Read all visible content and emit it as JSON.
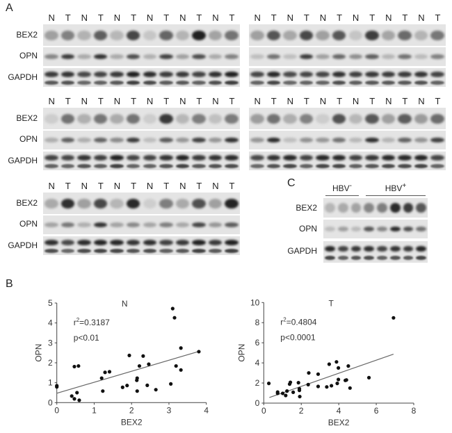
{
  "panels": {
    "a": "A",
    "b": "B",
    "c": "C"
  },
  "lane_labels": [
    "N",
    "T",
    "N",
    "T",
    "N",
    "T",
    "N",
    "T",
    "N",
    "T",
    "N",
    "T"
  ],
  "rows": {
    "bex2": "BEX2",
    "opn": "OPN",
    "gapdh": "GAPDH"
  },
  "panel_c": {
    "hbv_neg": "HBV-",
    "hbv_pos": "HBV+",
    "hbv_neg_base": "HBV",
    "hbv_neg_sup": "-",
    "hbv_pos_base": "HBV",
    "hbv_pos_sup": "+"
  },
  "chart_data": [
    {
      "type": "scatter",
      "title": "N",
      "xlabel": "BEX2",
      "ylabel": "OPN",
      "xlim": [
        0,
        4
      ],
      "ylim": [
        0,
        5
      ],
      "xticks": [
        0,
        1,
        2,
        3,
        4
      ],
      "yticks": [
        0,
        1,
        2,
        3,
        4,
        5
      ],
      "annotation": {
        "r2_label": "r",
        "r2_sup": "2",
        "r2_value": "=0.3187",
        "p": "p<0.01"
      },
      "points": [
        [
          0,
          0.85
        ],
        [
          0,
          0.79
        ],
        [
          0.4,
          0.33
        ],
        [
          0.47,
          0.19
        ],
        [
          0.47,
          1.81
        ],
        [
          0.58,
          1.84
        ],
        [
          0.54,
          0.5
        ],
        [
          0.6,
          0.12
        ],
        [
          1.2,
          1.23
        ],
        [
          1.23,
          0.58
        ],
        [
          1.29,
          1.52
        ],
        [
          1.41,
          1.55
        ],
        [
          1.76,
          0.77
        ],
        [
          1.88,
          0.86
        ],
        [
          1.94,
          2.37
        ],
        [
          2.14,
          1.12
        ],
        [
          2.15,
          1.23
        ],
        [
          2.15,
          0.58
        ],
        [
          2.21,
          1.84
        ],
        [
          2.31,
          2.34
        ],
        [
          2.42,
          0.87
        ],
        [
          2.46,
          1.93
        ],
        [
          2.65,
          0.65
        ],
        [
          3.05,
          0.94
        ],
        [
          3.1,
          4.72
        ],
        [
          3.15,
          4.26
        ],
        [
          3.19,
          1.84
        ],
        [
          3.32,
          2.74
        ],
        [
          3.32,
          1.64
        ],
        [
          3.8,
          2.56
        ]
      ],
      "fit_line": [
        [
          0,
          0.47
        ],
        [
          3.78,
          2.56
        ]
      ]
    },
    {
      "type": "scatter",
      "title": "T",
      "xlabel": "BEX2",
      "ylabel": "OPN",
      "xlim": [
        0,
        8
      ],
      "ylim": [
        0,
        10
      ],
      "xticks": [
        0,
        2,
        4,
        6,
        8
      ],
      "yticks": [
        0,
        2,
        4,
        6,
        8,
        10
      ],
      "annotation": {
        "r2_label": "r",
        "r2_sup": "2",
        "r2_value": "=0.4804",
        "p": "p<0.0001"
      },
      "points": [
        [
          0.27,
          1.96
        ],
        [
          0.74,
          1.1
        ],
        [
          0.74,
          0.97
        ],
        [
          1.01,
          0.97
        ],
        [
          1.17,
          0.76
        ],
        [
          1.24,
          1.2
        ],
        [
          1.38,
          1.89
        ],
        [
          1.42,
          2.07
        ],
        [
          1.57,
          1.08
        ],
        [
          1.85,
          2.03
        ],
        [
          1.9,
          1.43
        ],
        [
          1.9,
          1.27
        ],
        [
          1.92,
          0.65
        ],
        [
          2.37,
          1.84
        ],
        [
          2.4,
          3.0
        ],
        [
          2.9,
          2.88
        ],
        [
          2.9,
          1.66
        ],
        [
          3.36,
          1.61
        ],
        [
          3.49,
          3.87
        ],
        [
          3.61,
          1.73
        ],
        [
          3.88,
          4.1
        ],
        [
          3.92,
          1.96
        ],
        [
          3.98,
          3.5
        ],
        [
          3.98,
          2.35
        ],
        [
          4.35,
          2.26
        ],
        [
          4.41,
          2.3
        ],
        [
          4.51,
          3.69
        ],
        [
          4.6,
          1.5
        ],
        [
          5.61,
          2.53
        ],
        [
          6.92,
          8.48
        ]
      ],
      "fit_line": [
        [
          0.3,
          0.56
        ],
        [
          6.92,
          4.87
        ]
      ]
    }
  ]
}
